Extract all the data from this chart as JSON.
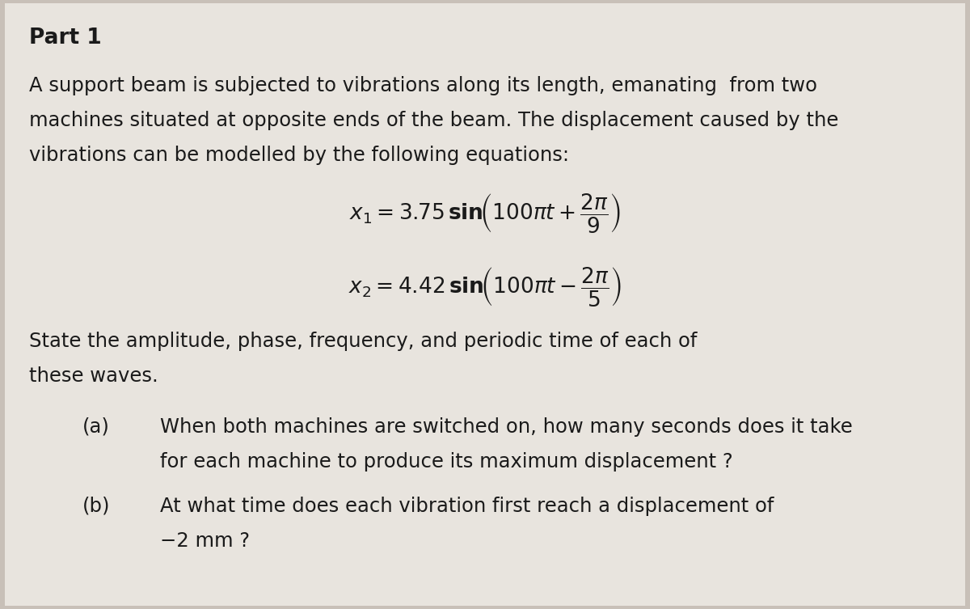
{
  "background_color": "#c8c0b8",
  "paper_color": "#e8e4de",
  "title": "Part 1",
  "intro_line1": "A support beam is subjected to vibrations along its length, emanating  from two",
  "intro_line2": "machines situated at opposite ends of the beam. The displacement caused by the",
  "intro_line3": "vibrations can be modelled by the following equations:",
  "eq1": "$x_1 = 3.75\\,\\mathbf{sin}\\!\\left(100\\pi t + \\dfrac{2\\pi}{9}\\right)$",
  "eq2": "$x_2 = 4.42\\,\\mathbf{sin}\\!\\left(100\\pi t - \\dfrac{2\\pi}{5}\\right)$",
  "state_line1": "State the amplitude, phase, frequency, and periodic time of each of",
  "state_line2": "these waves.",
  "part_a_label": "(a)",
  "part_a_line1": "When both machines are switched on, how many seconds does it take",
  "part_a_line2": "for each machine to produce its maximum displacement ?",
  "part_b_label": "(b)",
  "part_b_line1": "At what time does each vibration first reach a displacement of",
  "part_b_line2": "−2 mm ?",
  "title_fontsize": 19,
  "body_fontsize": 17.5,
  "eq_fontsize": 19
}
